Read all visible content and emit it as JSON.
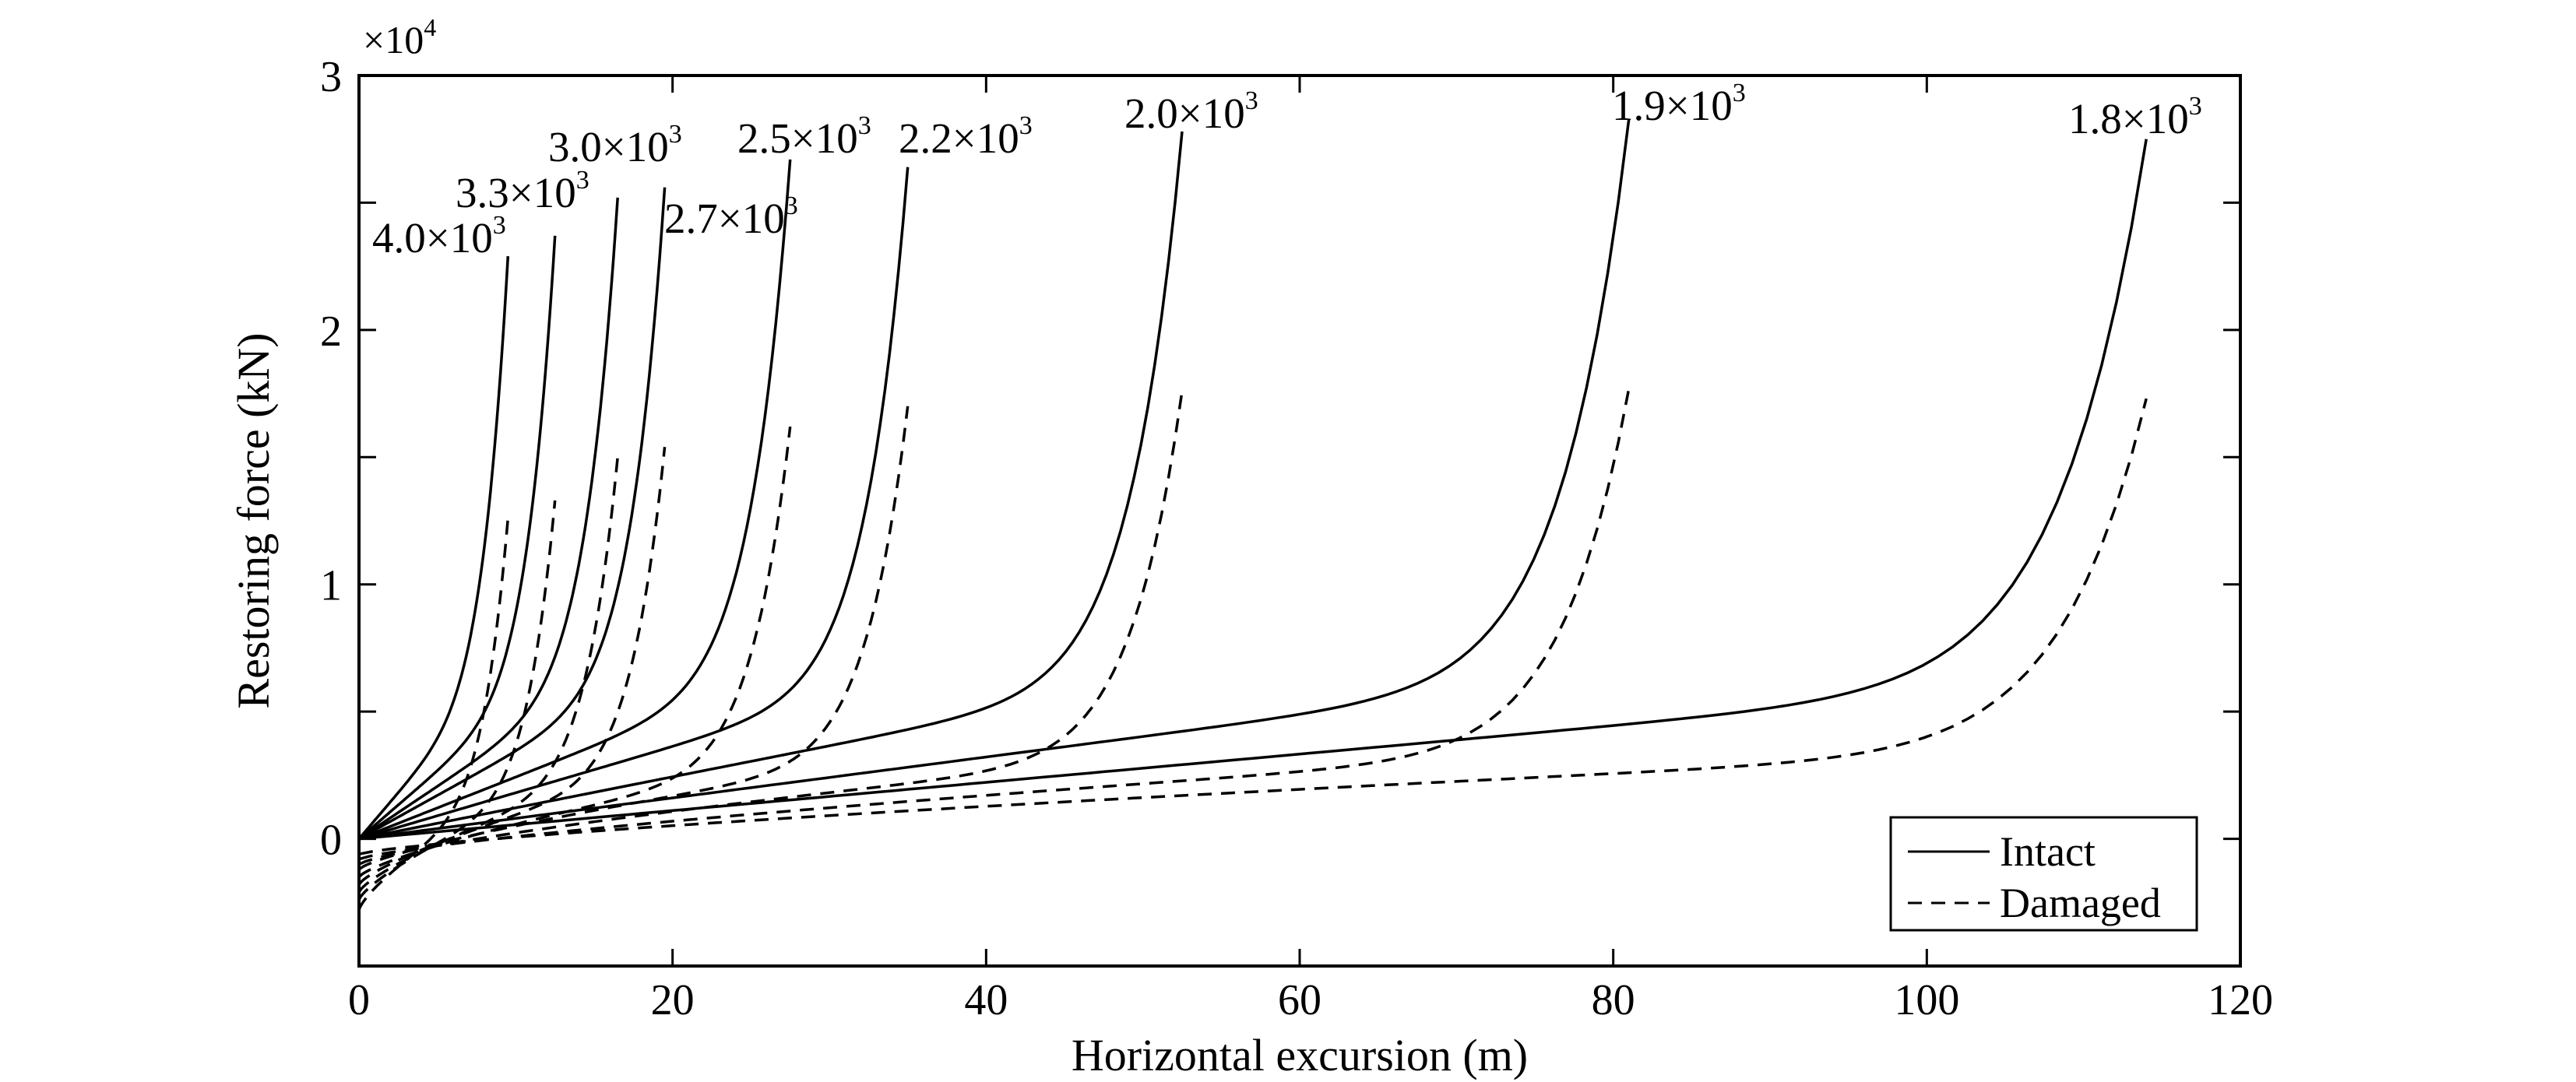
{
  "chart_data": {
    "type": "line",
    "title": "",
    "xlabel": "Horizontal excursion (m)",
    "ylabel": "Restoring force (kN)",
    "y_multiplier": "×10",
    "y_multiplier_exp": "4",
    "xlim": [
      0,
      120
    ],
    "ylim": [
      -0.5,
      3
    ],
    "x_ticks": [
      0,
      20,
      40,
      60,
      80,
      100,
      120
    ],
    "x_tick_labels": [
      "0",
      "20",
      "40",
      "60",
      "80",
      "100",
      "120"
    ],
    "y_ticks": [
      -0.5,
      0,
      0.5,
      1,
      1.5,
      2,
      2.5,
      3
    ],
    "y_tick_labels": [
      "0",
      "1",
      "2",
      "3"
    ],
    "y_tick_label_values": [
      0,
      1,
      2,
      3
    ],
    "grid": false,
    "legend": {
      "placement": "bottom-right",
      "entries": [
        "Intact",
        "Damaged"
      ]
    },
    "series_style": {
      "Intact": "solid",
      "Damaged": "dashed"
    },
    "curves": [
      {
        "label": "4.0×10",
        "exp": "3",
        "x_end": 9.5,
        "intact_end": 2.29,
        "damaged_start": -0.28,
        "damaged_end": 1.26,
        "lin": 0.3,
        "pow": 6
      },
      {
        "label": "3.3×10",
        "exp": "3",
        "x_end": 12.5,
        "intact_end": 2.37,
        "damaged_start": -0.24,
        "damaged_end": 1.33,
        "lin": 0.28,
        "pow": 7
      },
      {
        "label": "3.0×10",
        "exp": "3",
        "x_end": 16.5,
        "intact_end": 2.52,
        "damaged_start": -0.21,
        "damaged_end": 1.5,
        "lin": 0.27,
        "pow": 8
      },
      {
        "label": "2.7×10",
        "exp": "3",
        "x_end": 19.5,
        "intact_end": 2.56,
        "damaged_start": -0.18,
        "damaged_end": 1.54,
        "lin": 0.26,
        "pow": 9
      },
      {
        "label": "2.5×10",
        "exp": "3",
        "x_end": 27.5,
        "intact_end": 2.67,
        "damaged_start": -0.15,
        "damaged_end": 1.62,
        "lin": 0.25,
        "pow": 11
      },
      {
        "label": "2.2×10",
        "exp": "3",
        "x_end": 35,
        "intact_end": 2.64,
        "damaged_start": -0.12,
        "damaged_end": 1.7,
        "lin": 0.24,
        "pow": 13
      },
      {
        "label": "2.0×10",
        "exp": "3",
        "x_end": 52.5,
        "intact_end": 2.78,
        "damaged_start": -0.1,
        "damaged_end": 1.76,
        "lin": 0.23,
        "pow": 16
      },
      {
        "label": "1.9×10",
        "exp": "3",
        "x_end": 81,
        "intact_end": 2.83,
        "damaged_start": -0.08,
        "damaged_end": 1.77,
        "lin": 0.23,
        "pow": 19
      },
      {
        "label": "1.8×10",
        "exp": "3",
        "x_end": 114,
        "intact_end": 2.75,
        "damaged_start": -0.06,
        "damaged_end": 1.73,
        "lin": 0.23,
        "pow": 21
      }
    ]
  }
}
